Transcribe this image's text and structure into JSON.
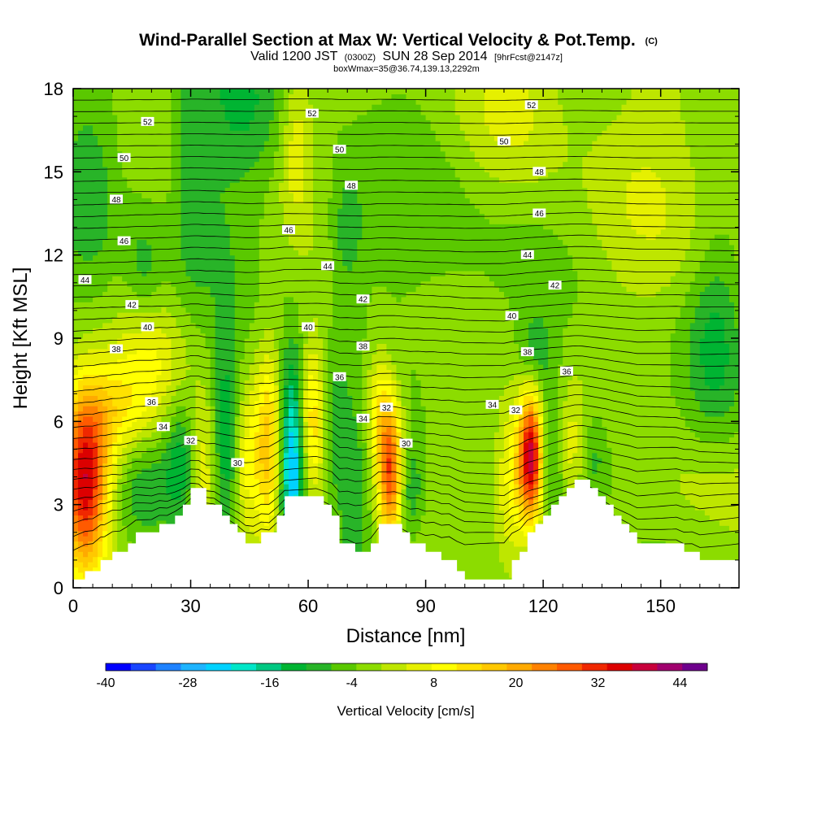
{
  "chart_data": {
    "type": "heatmap",
    "title": "Wind-Parallel Section at Max W: Vertical Velocity & Pot.Temp.",
    "title_unit": "(C)",
    "subtitle_valid": "Valid 1200 JST",
    "subtitle_utc": "(0300Z)",
    "subtitle_date": "SUN 28 Sep 2014",
    "subtitle_fcst": "[9hrFcst@2147z]",
    "subtitle_box": "boxWmax=35@36.74,139.13,2292m",
    "xlabel": "Distance [nm]",
    "ylabel": "Height [Kft MSL]",
    "xlim": [
      0,
      170
    ],
    "ylim": [
      0,
      18
    ],
    "x_ticks": [
      0,
      30,
      60,
      90,
      120,
      150
    ],
    "y_ticks": [
      0,
      3,
      6,
      9,
      12,
      15,
      18
    ],
    "colorbar": {
      "label": "Vertical Velocity [cm/s]",
      "min": -40,
      "max": 48,
      "step": 4,
      "tick_values": [
        -40,
        -28,
        -16,
        -4,
        8,
        20,
        32,
        44
      ],
      "colors": [
        "#0000ff",
        "#1a46ff",
        "#1e82ff",
        "#1eb4ff",
        "#00d2ff",
        "#00e6c8",
        "#00c882",
        "#00b432",
        "#28b428",
        "#5ac800",
        "#8cdc00",
        "#bee600",
        "#e6f000",
        "#ffff00",
        "#ffe100",
        "#ffc800",
        "#ffaa00",
        "#ff8200",
        "#ff5a00",
        "#f02800",
        "#dc0000",
        "#c8003c",
        "#a0006e",
        "#6e008c"
      ]
    },
    "terrain_profile": {
      "x": [
        0,
        3,
        5,
        7,
        8,
        10,
        12,
        14,
        16,
        18,
        20,
        22,
        24,
        26,
        28,
        30,
        32,
        34,
        36,
        38,
        40,
        42,
        44,
        46,
        48,
        50,
        52,
        54,
        56,
        58,
        60,
        62,
        64,
        66,
        68,
        70,
        72,
        74,
        76,
        78,
        80,
        82,
        84,
        86,
        88,
        90,
        92,
        94,
        96,
        98,
        100,
        102,
        104,
        106,
        108,
        110,
        112,
        114,
        116,
        118,
        120,
        122,
        124,
        126,
        128,
        130,
        132,
        134,
        136,
        138,
        140,
        142,
        144,
        146,
        148,
        150,
        152,
        154,
        156,
        158,
        160,
        162,
        164,
        166,
        168,
        170
      ],
      "h": [
        0.3,
        0.6,
        0.6,
        1.0,
        1.0,
        1.3,
        1.3,
        1.6,
        2.0,
        2.0,
        2.0,
        2.3,
        2.3,
        2.6,
        3.0,
        3.6,
        3.6,
        3.0,
        3.0,
        2.6,
        2.3,
        2.0,
        1.6,
        1.6,
        2.0,
        2.0,
        2.6,
        3.3,
        3.3,
        3.3,
        3.3,
        3.3,
        3.0,
        2.6,
        1.6,
        1.6,
        1.3,
        1.3,
        1.6,
        2.3,
        2.3,
        2.3,
        2.0,
        1.6,
        1.6,
        1.3,
        1.3,
        1.0,
        1.0,
        0.6,
        0.3,
        0.3,
        0.3,
        0.3,
        0.3,
        0.3,
        1.0,
        1.3,
        2.0,
        2.3,
        2.6,
        3.0,
        3.3,
        3.6,
        3.9,
        3.9,
        3.6,
        3.3,
        3.0,
        2.6,
        2.3,
        2.0,
        1.6,
        1.6,
        1.6,
        1.6,
        1.6,
        1.6,
        1.3,
        1.3,
        1.0,
        1.0,
        1.0,
        1.0,
        1.0,
        1.0
      ]
    },
    "theta_contours": [
      {
        "value": 30,
        "label_x": 42,
        "label_y": 4.5
      },
      {
        "value": 30,
        "label_x": 85,
        "label_y": 5.2
      },
      {
        "value": 32,
        "label_x": 30,
        "label_y": 5.3
      },
      {
        "value": 32,
        "label_x": 80,
        "label_y": 6.5
      },
      {
        "value": 32,
        "label_x": 113,
        "label_y": 6.4
      },
      {
        "value": 34,
        "label_x": 23,
        "label_y": 5.8
      },
      {
        "value": 34,
        "label_x": 74,
        "label_y": 6.1
      },
      {
        "value": 34,
        "label_x": 107,
        "label_y": 6.6
      },
      {
        "value": 36,
        "label_x": 20,
        "label_y": 6.7
      },
      {
        "value": 36,
        "label_x": 68,
        "label_y": 7.6
      },
      {
        "value": 36,
        "label_x": 126,
        "label_y": 7.8
      },
      {
        "value": 38,
        "label_x": 11,
        "label_y": 8.6
      },
      {
        "value": 38,
        "label_x": 74,
        "label_y": 8.7
      },
      {
        "value": 38,
        "label_x": 116,
        "label_y": 8.5
      },
      {
        "value": 40,
        "label_x": 19,
        "label_y": 9.4
      },
      {
        "value": 40,
        "label_x": 60,
        "label_y": 9.4
      },
      {
        "value": 40,
        "label_x": 112,
        "label_y": 9.8
      },
      {
        "value": 42,
        "label_x": 15,
        "label_y": 10.2
      },
      {
        "value": 42,
        "label_x": 74,
        "label_y": 10.4
      },
      {
        "value": 42,
        "label_x": 123,
        "label_y": 10.9
      },
      {
        "value": 44,
        "label_x": 3,
        "label_y": 11.1
      },
      {
        "value": 44,
        "label_x": 65,
        "label_y": 11.6
      },
      {
        "value": 44,
        "label_x": 116,
        "label_y": 12.0
      },
      {
        "value": 46,
        "label_x": 13,
        "label_y": 12.5
      },
      {
        "value": 46,
        "label_x": 55,
        "label_y": 12.9
      },
      {
        "value": 46,
        "label_x": 119,
        "label_y": 13.5
      },
      {
        "value": 48,
        "label_x": 11,
        "label_y": 14.0
      },
      {
        "value": 48,
        "label_x": 71,
        "label_y": 14.5
      },
      {
        "value": 48,
        "label_x": 119,
        "label_y": 15.0
      },
      {
        "value": 50,
        "label_x": 13,
        "label_y": 15.5
      },
      {
        "value": 50,
        "label_x": 68,
        "label_y": 15.8
      },
      {
        "value": 50,
        "label_x": 110,
        "label_y": 16.1
      },
      {
        "value": 52,
        "label_x": 19,
        "label_y": 16.8
      },
      {
        "value": 52,
        "label_x": 61,
        "label_y": 17.1
      },
      {
        "value": 52,
        "label_x": 117,
        "label_y": 17.4
      }
    ],
    "w_features": [
      {
        "x": 3,
        "y": 3.6,
        "sx": 4,
        "sy": 2.3,
        "w": 34
      },
      {
        "x": 5,
        "y": 5.0,
        "sx": 7,
        "sy": 2.0,
        "w": 12
      },
      {
        "x": 12,
        "y": 6.5,
        "sx": 8,
        "sy": 1.2,
        "w": 10
      },
      {
        "x": 20,
        "y": 8.5,
        "sx": 6,
        "sy": 1.3,
        "w": 8
      },
      {
        "x": 16,
        "y": 3.5,
        "sx": 6,
        "sy": 1.5,
        "w": -10
      },
      {
        "x": 28,
        "y": 4.6,
        "sx": 3,
        "sy": 1.5,
        "w": -12
      },
      {
        "x": 33,
        "y": 4.0,
        "sx": 3,
        "sy": 2.0,
        "w": 14
      },
      {
        "x": 39,
        "y": 5.5,
        "sx": 2.5,
        "sy": 2.5,
        "w": -14
      },
      {
        "x": 44,
        "y": 4.2,
        "sx": 2.5,
        "sy": 2.0,
        "w": 12
      },
      {
        "x": 50,
        "y": 5.0,
        "sx": 2.5,
        "sy": 2.5,
        "w": 20
      },
      {
        "x": 56,
        "y": 4.6,
        "sx": 2.5,
        "sy": 2.5,
        "w": -30
      },
      {
        "x": 61,
        "y": 6.0,
        "sx": 2.5,
        "sy": 2.0,
        "w": 20
      },
      {
        "x": 66,
        "y": 5.5,
        "sx": 3,
        "sy": 2.0,
        "w": -8
      },
      {
        "x": 72,
        "y": 3.5,
        "sx": 2.5,
        "sy": 2.0,
        "w": -8
      },
      {
        "x": 81,
        "y": 4.2,
        "sx": 2.2,
        "sy": 1.8,
        "w": 34
      },
      {
        "x": 78,
        "y": 6.5,
        "sx": 2.5,
        "sy": 1.5,
        "w": 14
      },
      {
        "x": 86,
        "y": 3.5,
        "sx": 2.5,
        "sy": 1.2,
        "w": -10
      },
      {
        "x": 117,
        "y": 4.7,
        "sx": 2.2,
        "sy": 1.6,
        "w": 46
      },
      {
        "x": 112,
        "y": 4.0,
        "sx": 3,
        "sy": 2.0,
        "w": 14
      },
      {
        "x": 122,
        "y": 5.0,
        "sx": 2.5,
        "sy": 1.8,
        "w": -10
      },
      {
        "x": 127,
        "y": 5.0,
        "sx": 3,
        "sy": 1.5,
        "w": 10
      },
      {
        "x": 133,
        "y": 4.8,
        "sx": 3,
        "sy": 1.2,
        "w": -8
      },
      {
        "x": 118,
        "y": 8.5,
        "sx": 3,
        "sy": 1.0,
        "w": -8
      },
      {
        "x": 164,
        "y": 9.0,
        "sx": 5,
        "sy": 2.5,
        "w": -10
      },
      {
        "x": 160,
        "y": 3.5,
        "sx": 10,
        "sy": 1.5,
        "w": 4
      },
      {
        "x": 57,
        "y": 16.0,
        "sx": 3,
        "sy": 2.0,
        "w": 10
      },
      {
        "x": 42,
        "y": 17.5,
        "sx": 8,
        "sy": 2.0,
        "w": -8
      },
      {
        "x": 30,
        "y": 16.0,
        "sx": 3,
        "sy": 3.0,
        "w": -6
      },
      {
        "x": 113,
        "y": 17.5,
        "sx": 10,
        "sy": 2.5,
        "w": 8
      },
      {
        "x": 4,
        "y": 14.5,
        "sx": 5,
        "sy": 3.0,
        "w": -6
      },
      {
        "x": 18,
        "y": 11.5,
        "sx": 3,
        "sy": 1.5,
        "w": -6
      },
      {
        "x": 70,
        "y": 12.8,
        "sx": 3,
        "sy": 1.5,
        "w": -8
      },
      {
        "x": 150,
        "y": 14.5,
        "sx": 12,
        "sy": 3.5,
        "w": 6
      },
      {
        "x": 95,
        "y": 13.5,
        "sx": 15,
        "sy": 3.0,
        "w": -3
      },
      {
        "x": 35,
        "y": 13.0,
        "sx": 8,
        "sy": 2.0,
        "w": -4
      }
    ]
  }
}
